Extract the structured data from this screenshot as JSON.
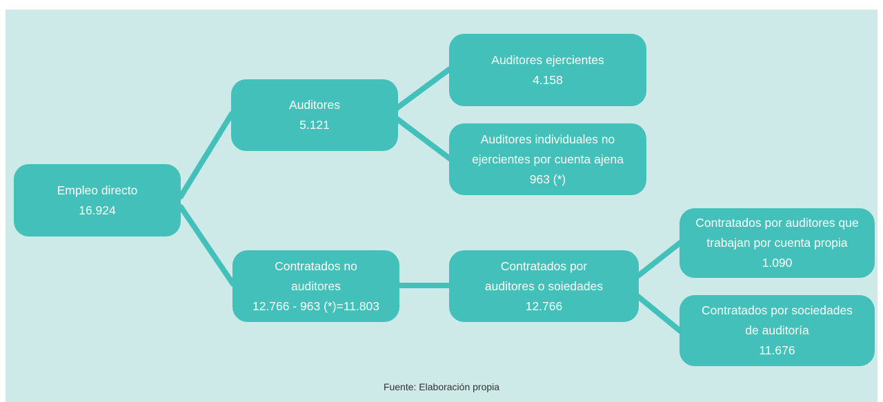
{
  "nodes": [
    {
      "lines": [
        "Empleo directo",
        "16.924"
      ]
    },
    {
      "lines": [
        "Auditores",
        "5.121"
      ]
    },
    {
      "lines": [
        "Contratados no",
        "auditores",
        "12.766 - 963 (*)=11.803"
      ]
    },
    {
      "lines": [
        "Auditores ejercientes",
        "4.158"
      ]
    },
    {
      "lines": [
        "Auditores individuales no",
        "ejercientes por cuenta ajena",
        "963 (*)"
      ]
    },
    {
      "lines": [
        "Contratados por",
        "auditores o soiedades",
        "12.766"
      ]
    },
    {
      "lines": [
        "Contratados por auditores que",
        "trabajan por cuenta propia",
        "1.090"
      ]
    },
    {
      "lines": [
        "Contratados por sociedades",
        "de auditoría",
        "11.676"
      ]
    }
  ],
  "footer": "Fuente: Elaboración propia"
}
